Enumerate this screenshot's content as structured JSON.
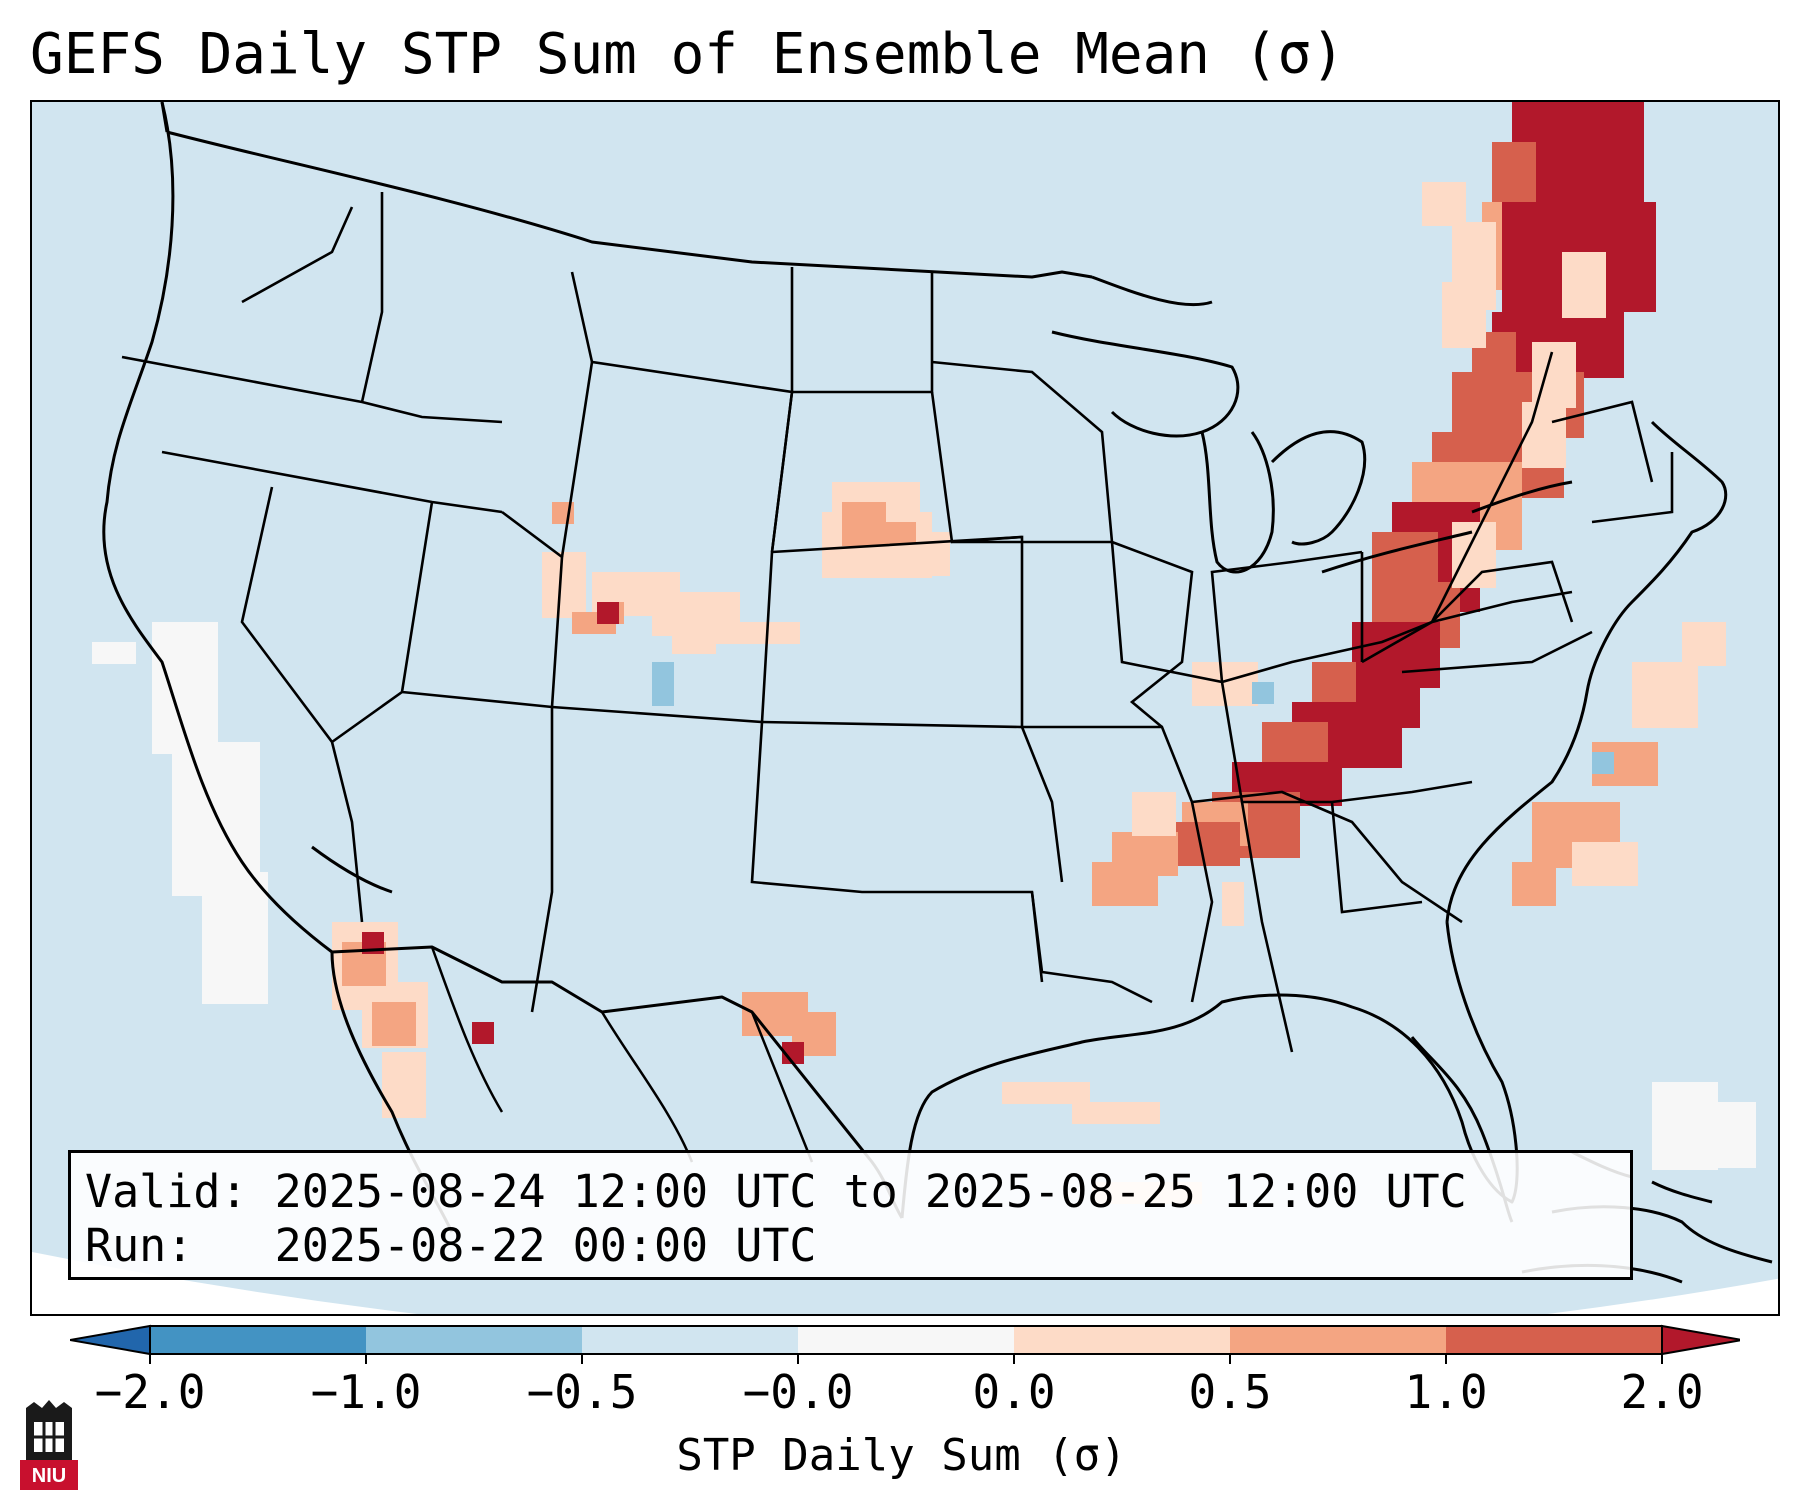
{
  "title": "GEFS Daily STP Sum of Ensemble Mean (σ)",
  "info": {
    "valid_label": "Valid:",
    "valid_value": "2025-08-24 12:00 UTC to 2025-08-25 12:00 UTC",
    "run_label": "Run:",
    "run_value": "2025-08-22 00:00 UTC"
  },
  "colorbar": {
    "label": "STP Daily Sum (σ)",
    "ticks": [
      "−2.0",
      "−1.0",
      "−0.5",
      "−0.0",
      "0.0",
      "0.5",
      "1.0",
      "2.0"
    ],
    "colors": {
      "under": "#2166ac",
      "bin_m2_m1": "#4393c3",
      "bin_m1_m05": "#92c5de",
      "bin_m05_0": "#d1e5f0",
      "bin_0_0": "#f7f7f7",
      "bin_0_05": "#fddbc7",
      "bin_05_1": "#f4a582",
      "bin_1_2": "#d6604d",
      "over": "#b2182b"
    }
  },
  "logo": {
    "text": "NIU",
    "color": "#c8102e"
  },
  "icons": [
    "niu-logo-icon",
    "colorbar-extend-arrow-icon"
  ]
}
